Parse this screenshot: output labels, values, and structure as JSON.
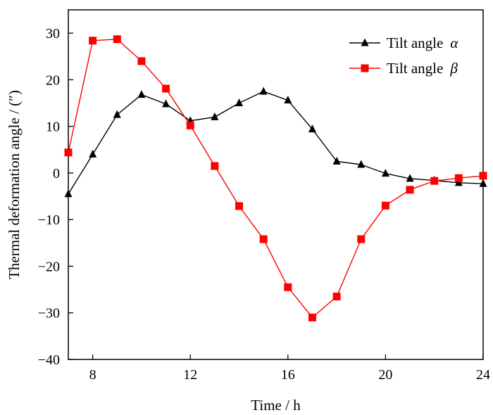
{
  "chart_data": {
    "type": "line",
    "title": "",
    "xlabel": "Time / h",
    "ylabel": "Thermal deformation angle / (″)",
    "xlim": [
      7,
      24
    ],
    "ylim": [
      -40,
      35
    ],
    "xticks": [
      8,
      12,
      16,
      20,
      24
    ],
    "yticks": [
      -40,
      -30,
      -20,
      -10,
      0,
      10,
      20,
      30
    ],
    "grid": false,
    "legend_position": "top-right",
    "series": [
      {
        "name": "Tilt angle α",
        "label_prefix": "Tilt angle",
        "label_symbol": "α",
        "color": "#000000",
        "marker": "triangle",
        "x": [
          7,
          8,
          9,
          10,
          11,
          12,
          13,
          14,
          15,
          16,
          17,
          18,
          19,
          20,
          21,
          22,
          23,
          24
        ],
        "y": [
          -4.5,
          4,
          12.5,
          16.8,
          14.8,
          11.2,
          12,
          15,
          17.5,
          15.6,
          9.4,
          2.5,
          1.8,
          -0.1,
          -1.2,
          -1.6,
          -2.1,
          -2.3
        ]
      },
      {
        "name": "Tilt angle β",
        "label_prefix": "Tilt angle",
        "label_symbol": "β",
        "color": "#ff0000",
        "marker": "square",
        "x": [
          7,
          8,
          9,
          10,
          11,
          12,
          13,
          14,
          15,
          16,
          17,
          18,
          19,
          20,
          21,
          22,
          23,
          24
        ],
        "y": [
          4.4,
          28.4,
          28.7,
          24,
          18.1,
          10.2,
          1.5,
          -7.1,
          -14.2,
          -24.5,
          -31,
          -26.5,
          -14.2,
          -7,
          -3.6,
          -1.7,
          -1.1,
          -0.6
        ]
      }
    ]
  }
}
